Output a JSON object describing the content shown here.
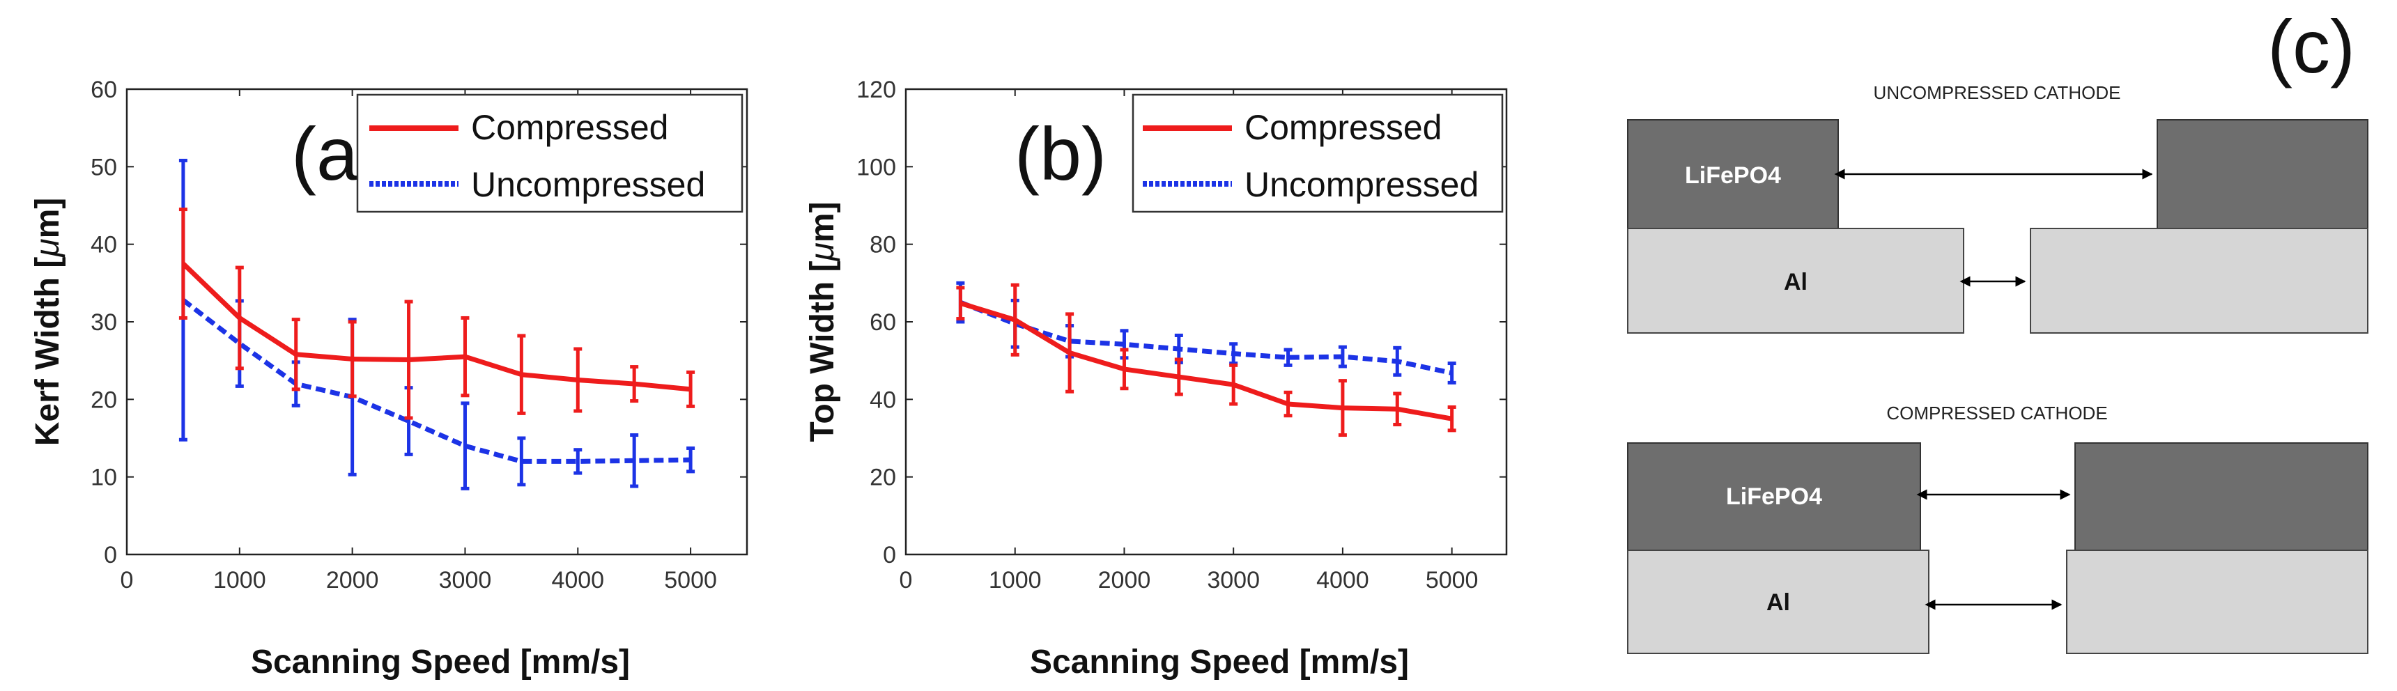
{
  "chart_data": [
    {
      "panel_label": "(a)",
      "type": "line",
      "title": "",
      "xlabel": "Scanning Speed [mm/s]",
      "ylabel": "Kerf Width [",
      "ylabel_mu": "μ",
      "ylabel_unit": "m]",
      "xlim": [
        0,
        5500
      ],
      "ylim": [
        0,
        60
      ],
      "xticks": [
        0,
        1000,
        2000,
        3000,
        4000,
        5000
      ],
      "yticks": [
        0,
        10,
        20,
        30,
        40,
        50,
        60
      ],
      "grid": false,
      "legend": "top-right",
      "series": [
        {
          "name": "Compressed",
          "color": "#ee1c1c",
          "style": "solid",
          "x": [
            500,
            1000,
            1500,
            2000,
            2500,
            3000,
            3500,
            4000,
            4500,
            5000
          ],
          "y": [
            37.5,
            30.5,
            25.8,
            25.2,
            25.1,
            25.5,
            23.2,
            22.5,
            22.0,
            21.3
          ],
          "err": [
            7,
            6.5,
            4.5,
            4.8,
            7.5,
            5,
            5,
            4,
            2.2,
            2.2
          ]
        },
        {
          "name": "Uncompressed",
          "color": "#1c33e6",
          "style": "dashed",
          "x": [
            500,
            1000,
            1500,
            2000,
            2500,
            3000,
            3500,
            4000,
            4500,
            5000
          ],
          "y": [
            32.8,
            27.2,
            22.0,
            20.3,
            17.2,
            14.0,
            12.0,
            12.0,
            12.1,
            12.2
          ],
          "err": [
            18,
            5.5,
            2.8,
            10,
            4.3,
            5.5,
            3,
            1.5,
            3.3,
            1.5
          ]
        }
      ]
    },
    {
      "panel_label": "(b)",
      "type": "line",
      "title": "",
      "xlabel": "Scanning Speed [mm/s]",
      "ylabel": "Top Width [",
      "ylabel_mu": "μ",
      "ylabel_unit": "m]",
      "xlim": [
        0,
        5500
      ],
      "ylim": [
        0,
        120
      ],
      "xticks": [
        0,
        1000,
        2000,
        3000,
        4000,
        5000
      ],
      "yticks": [
        0,
        20,
        40,
        60,
        80,
        100,
        120
      ],
      "grid": false,
      "legend": "top-right",
      "series": [
        {
          "name": "Compressed",
          "color": "#ee1c1c",
          "style": "solid",
          "x": [
            500,
            1000,
            1500,
            2000,
            2500,
            3000,
            3500,
            4000,
            4500,
            5000
          ],
          "y": [
            64.8,
            60.5,
            52.0,
            47.8,
            45.8,
            43.8,
            38.8,
            37.8,
            37.5,
            35.0
          ],
          "err": [
            4,
            9,
            10,
            5,
            4.5,
            5,
            3,
            7,
            4,
            3
          ]
        },
        {
          "name": "Uncompressed",
          "color": "#1c33e6",
          "style": "dashed",
          "x": [
            500,
            1000,
            1500,
            2000,
            2500,
            3000,
            3500,
            4000,
            4500,
            5000
          ],
          "y": [
            65.0,
            59.5,
            55.0,
            54.2,
            53.0,
            51.8,
            50.8,
            51.0,
            49.8,
            46.8
          ],
          "err": [
            5,
            6,
            4,
            3.5,
            3.5,
            2.5,
            2,
            2.5,
            3.5,
            2.5
          ]
        }
      ]
    }
  ],
  "diagram": {
    "panel_label": "(c)",
    "uncompressed": {
      "title": "UNCOMPRESSED CATHODE",
      "top_layer_label": "LiFePO4",
      "bottom_layer_label": "Al"
    },
    "compressed": {
      "title": "COMPRESSED CATHODE",
      "top_layer_label": "LiFePO4",
      "bottom_layer_label": "Al"
    },
    "colors": {
      "cathode": "#6e6e6e",
      "aluminum": "#d6d6d6"
    }
  }
}
